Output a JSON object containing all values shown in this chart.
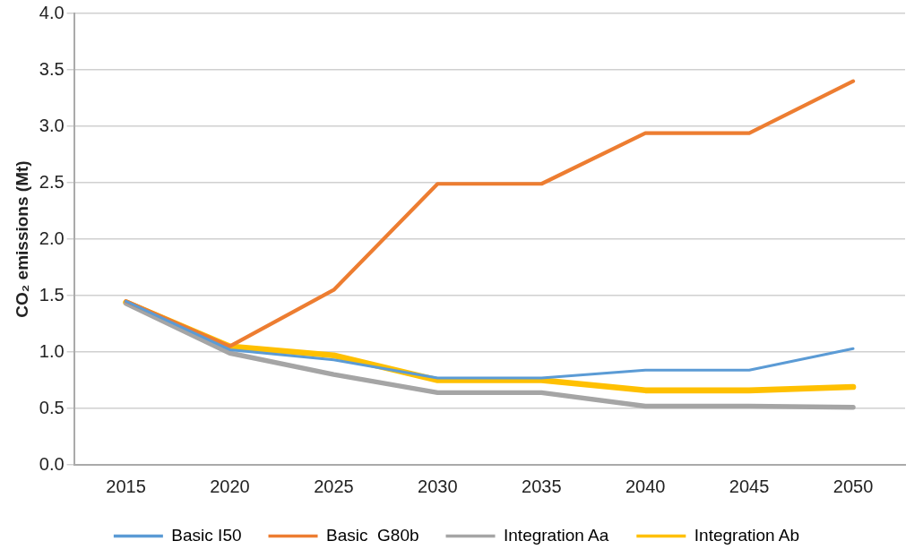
{
  "chart_data": {
    "type": "line",
    "ylabel": "CO₂ emissions (Mt)",
    "categories": [
      "2015",
      "2020",
      "2025",
      "2030",
      "2035",
      "2040",
      "2045",
      "2050"
    ],
    "series": [
      {
        "name": "Basic I50",
        "color": "#5b9bd5",
        "values": [
          1.45,
          1.02,
          0.93,
          0.77,
          0.77,
          0.84,
          0.84,
          1.03
        ]
      },
      {
        "name": "Basic  G80b",
        "color": "#ed7d31",
        "values": [
          1.45,
          1.05,
          1.55,
          2.49,
          2.49,
          2.94,
          2.94,
          3.4
        ]
      },
      {
        "name": "Integration Aa",
        "color": "#a5a5a5",
        "values": [
          1.43,
          0.99,
          0.8,
          0.64,
          0.64,
          0.52,
          0.52,
          0.51
        ]
      },
      {
        "name": "Integration Ab",
        "color": "#ffc000",
        "values": [
          1.44,
          1.05,
          0.97,
          0.75,
          0.75,
          0.66,
          0.66,
          0.69
        ]
      }
    ],
    "ylim": [
      0,
      4
    ],
    "yticks": [
      {
        "value": 0,
        "label": "0.0"
      },
      {
        "value": 0.5,
        "label": "0.5"
      },
      {
        "value": 1,
        "label": "1.0"
      },
      {
        "value": 1.5,
        "label": "1.5"
      },
      {
        "value": 2,
        "label": "2.0"
      },
      {
        "value": 2.5,
        "label": "2.5"
      },
      {
        "value": 3,
        "label": "3.0"
      },
      {
        "value": 3.5,
        "label": "3.5"
      },
      {
        "value": 4,
        "label": "4.0"
      }
    ],
    "grid": "y",
    "legend": "bottom",
    "marker": "none",
    "line_style": "solid"
  }
}
